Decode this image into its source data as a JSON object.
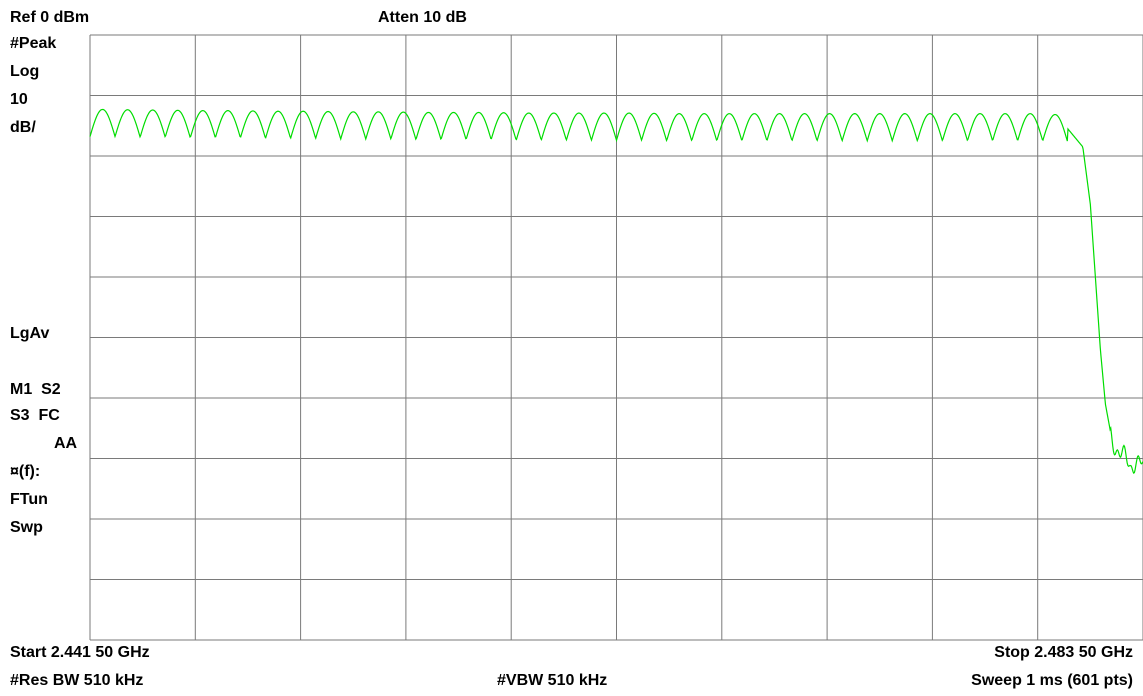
{
  "header": {
    "ref_level": "Ref 0 dBm",
    "attenuation": "Atten 10 dB"
  },
  "side_panel": {
    "detector": "#Peak",
    "scale_type": "Log",
    "scale_value": "10",
    "scale_unit": "dB/",
    "averaging": "LgAv",
    "markers_row1": "M1  S2",
    "markers_row2": "S3  FC",
    "markers_row3": "AA",
    "function": "¤(f):",
    "tune_mode": "FTun",
    "sweep_mode": "Swp"
  },
  "footer": {
    "start_freq": "Start 2.441 50 GHz",
    "stop_freq": "Stop 2.483 50 GHz",
    "res_bw": "#Res BW 510 kHz",
    "vbw": "#VBW 510 kHz",
    "sweep": "Sweep 1 ms (601 pts)"
  },
  "colors": {
    "trace": "#00dd00",
    "grid": "#7a7a7a",
    "background": "#ffffff"
  },
  "chart_data": {
    "type": "line",
    "grid": true,
    "x_unit": "GHz",
    "y_unit": "dBm",
    "xlim": [
      2.4415,
      2.4835
    ],
    "ylim": [
      -100,
      0
    ],
    "x_divisions": 10,
    "y_divisions": 10,
    "series": [
      {
        "x": [
          2.4415,
          2.4425,
          2.4435,
          2.4445,
          2.4455,
          2.4465,
          2.4475,
          2.4485,
          2.4495,
          2.4505,
          2.4515,
          2.4525,
          2.4535,
          2.4545,
          2.4555,
          2.4565,
          2.4575,
          2.4585,
          2.4595,
          2.4605,
          2.4615,
          2.4625,
          2.4635,
          2.4645,
          2.4655,
          2.4665,
          2.4675,
          2.4685,
          2.4695,
          2.4705,
          2.4715,
          2.4725,
          2.4735,
          2.4745,
          2.4755,
          2.4765,
          2.4775,
          2.4785,
          2.4795,
          2.4805,
          2.4811,
          2.4814,
          2.4816,
          2.4818,
          2.482,
          2.4822,
          2.4824,
          2.4826,
          2.4828,
          2.483,
          2.4832,
          2.4835
        ],
        "y": [
          -14.5,
          -14.5,
          -14.6,
          -14.6,
          -14.7,
          -14.7,
          -14.7,
          -14.8,
          -14.8,
          -14.8,
          -14.9,
          -14.9,
          -14.9,
          -15.0,
          -15.0,
          -15.0,
          -15.0,
          -15.1,
          -15.1,
          -15.1,
          -15.1,
          -15.1,
          -15.1,
          -15.2,
          -15.2,
          -15.2,
          -15.2,
          -15.2,
          -15.2,
          -15.2,
          -15.2,
          -15.2,
          -15.2,
          -15.2,
          -15.2,
          -15.2,
          -15.2,
          -15.2,
          -15.2,
          -15.5,
          -18.5,
          -28.0,
          -40.0,
          -52.0,
          -61.0,
          -65.5,
          -68.0,
          -69.5,
          -70.0,
          -71.0,
          -70.5,
          -71.5
        ]
      }
    ]
  }
}
